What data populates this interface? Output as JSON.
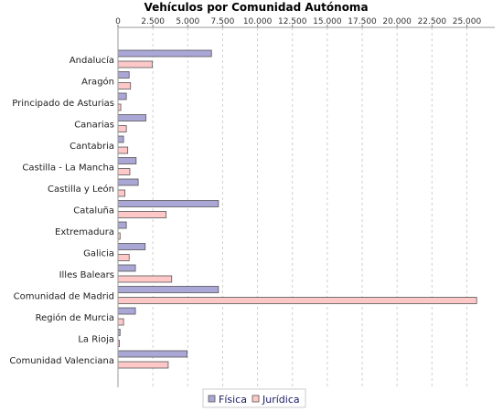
{
  "chart_data": {
    "type": "bar",
    "orientation": "horizontal",
    "title": "Vehículos por Comunidad Autónoma",
    "xlabel": "",
    "ylabel": "",
    "xlim": [
      0,
      27000
    ],
    "tick_values": [
      0,
      2500,
      5000,
      7500,
      10000,
      12500,
      15000,
      17500,
      20000,
      22500,
      25000
    ],
    "tick_labels": [
      "0",
      "2.500",
      "5.000",
      "7.500",
      "10.000",
      "12.500",
      "15.000",
      "17.500",
      "20.000",
      "22.500",
      "25.000"
    ],
    "grid": true,
    "legend_position": "bottom",
    "categories": [
      "Andalucía",
      "Aragón",
      "Principado de Asturias",
      "Canarias",
      "Cantabria",
      "Castilla - La Mancha",
      "Castilla y León",
      "Cataluña",
      "Extremadura",
      "Galicia",
      "Illes Balears",
      "Comunidad de Madrid",
      "Región de Murcia",
      "La Rioja",
      "Comunidad Valenciana"
    ],
    "series": [
      {
        "name": "Física",
        "color": "#aaa6d6",
        "values": [
          6700,
          800,
          600,
          2000,
          400,
          1300,
          1450,
          7200,
          600,
          1950,
          1250,
          7200,
          1250,
          150,
          4950
        ]
      },
      {
        "name": "Jurídica",
        "color": "#ffc8c8",
        "values": [
          2450,
          900,
          200,
          600,
          700,
          850,
          500,
          3450,
          150,
          800,
          3850,
          25700,
          400,
          100,
          3600
        ]
      }
    ]
  }
}
